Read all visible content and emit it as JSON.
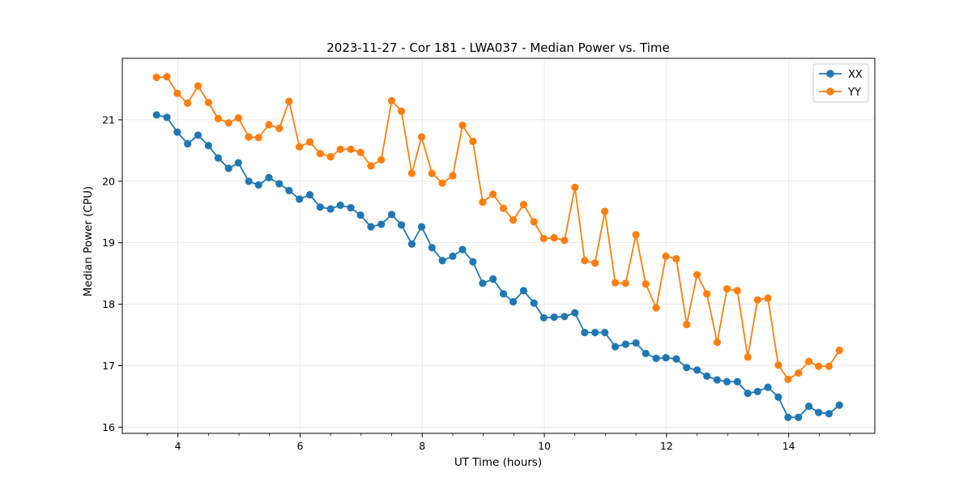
{
  "chart_data": {
    "type": "line",
    "title": "2023-11-27 - Cor 181 - LWA037 - Median Power vs. Time",
    "xlabel": "UT Time (hours)",
    "ylabel": "Median Power (CPU)",
    "xlim": [
      3.09,
      15.41
    ],
    "ylim": [
      15.9,
      22.0
    ],
    "xticks": [
      4,
      6,
      8,
      10,
      12,
      14
    ],
    "yticks": [
      16,
      17,
      18,
      19,
      20,
      21
    ],
    "grid": true,
    "legend_location": "top-right",
    "x": [
      3.65,
      3.82,
      3.99,
      4.16,
      4.33,
      4.5,
      4.66,
      4.83,
      4.99,
      5.16,
      5.32,
      5.49,
      5.66,
      5.82,
      5.99,
      6.16,
      6.33,
      6.5,
      6.66,
      6.83,
      6.99,
      7.16,
      7.33,
      7.5,
      7.66,
      7.83,
      7.99,
      8.16,
      8.33,
      8.5,
      8.66,
      8.83,
      8.99,
      9.16,
      9.33,
      9.49,
      9.66,
      9.83,
      9.99,
      10.16,
      10.33,
      10.5,
      10.66,
      10.83,
      10.99,
      11.16,
      11.33,
      11.5,
      11.66,
      11.83,
      11.99,
      12.16,
      12.33,
      12.5,
      12.66,
      12.83,
      12.99,
      13.16,
      13.33,
      13.49,
      13.66,
      13.83,
      13.99,
      14.16,
      14.33,
      14.49,
      14.66,
      14.83
    ],
    "series": [
      {
        "name": "XX",
        "color": "#1f77b4",
        "values": [
          21.08,
          21.04,
          20.8,
          20.61,
          20.75,
          20.58,
          20.38,
          20.21,
          20.3,
          20.0,
          19.94,
          20.06,
          19.96,
          19.85,
          19.71,
          19.78,
          19.58,
          19.55,
          19.61,
          19.57,
          19.45,
          19.26,
          19.3,
          19.46,
          19.29,
          18.98,
          19.26,
          18.92,
          18.71,
          18.78,
          18.89,
          18.69,
          18.34,
          18.41,
          18.17,
          18.04,
          18.22,
          18.02,
          17.78,
          17.79,
          17.8,
          17.86,
          17.54,
          17.54,
          17.54,
          17.31,
          17.35,
          17.37,
          17.2,
          17.12,
          17.13,
          17.11,
          16.97,
          16.93,
          16.83,
          16.77,
          16.74,
          16.74,
          16.55,
          16.58,
          16.65,
          16.49,
          16.16,
          16.16,
          16.34,
          16.24,
          16.22,
          16.36
        ]
      },
      {
        "name": "YY",
        "color": "#ff7f0e",
        "values": [
          21.69,
          21.7,
          21.43,
          21.27,
          21.55,
          21.28,
          21.02,
          20.95,
          21.03,
          20.72,
          20.71,
          20.92,
          20.86,
          21.3,
          20.56,
          20.64,
          20.45,
          20.4,
          20.52,
          20.52,
          20.47,
          20.25,
          20.35,
          21.31,
          21.14,
          20.13,
          20.72,
          20.13,
          19.97,
          20.09,
          20.91,
          20.65,
          19.66,
          19.79,
          19.56,
          19.37,
          19.62,
          19.34,
          19.07,
          19.08,
          19.04,
          19.9,
          18.71,
          18.67,
          19.51,
          18.35,
          18.34,
          19.13,
          18.33,
          17.94,
          18.78,
          18.74,
          17.67,
          18.48,
          18.17,
          17.38,
          18.25,
          18.22,
          17.14,
          18.07,
          18.1,
          17.01,
          16.78,
          16.88,
          17.07,
          16.99,
          16.99,
          17.25
        ]
      }
    ]
  }
}
